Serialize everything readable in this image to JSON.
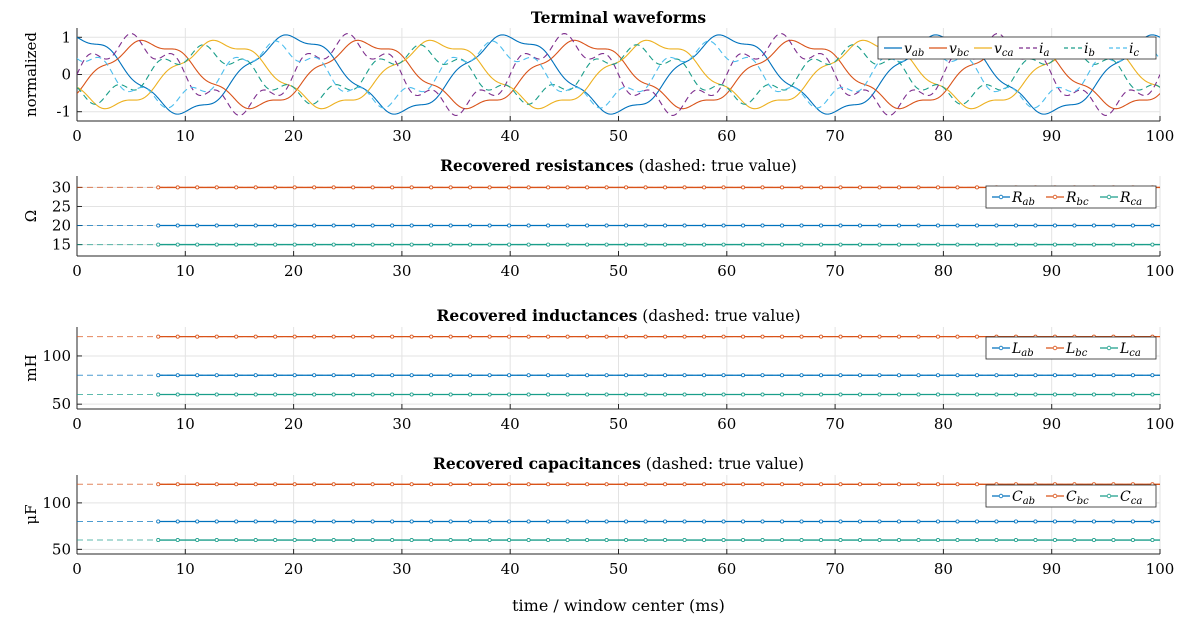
{
  "figure": {
    "xlabel": "time / window center (ms)"
  },
  "chart_data": [
    {
      "type": "line",
      "title": "Terminal waveforms",
      "title_suffix": "",
      "ylabel": "normalized",
      "xlim": [
        0,
        100
      ],
      "ylim": [
        -1.25,
        1.25
      ],
      "xticks": [
        0,
        10,
        20,
        30,
        40,
        50,
        60,
        70,
        80,
        90,
        100
      ],
      "yticks": [
        -1,
        0,
        1
      ],
      "grid": true,
      "legend": {
        "position": "top-right",
        "orientation": "horizontal"
      },
      "series": [
        {
          "name": "v",
          "subscript": "ab",
          "color": "#0072BD",
          "dash": "solid",
          "amplitude": 1.0,
          "phase_deg": 90,
          "harmonic": 0.1
        },
        {
          "name": "v",
          "subscript": "bc",
          "color": "#D95319",
          "dash": "solid",
          "amplitude": 0.85,
          "phase_deg": -30,
          "harmonic": 0.1
        },
        {
          "name": "v",
          "subscript": "ca",
          "color": "#EDB120",
          "dash": "solid",
          "amplitude": 0.85,
          "phase_deg": 210,
          "harmonic": 0.1
        },
        {
          "name": "i",
          "subscript": "a",
          "color": "#7E2F8E",
          "dash": "dashed",
          "amplitude": 0.85,
          "phase_deg": 0,
          "harmonic": 0.25
        },
        {
          "name": "i",
          "subscript": "b",
          "color": "#1A9E8A",
          "dash": "dashed",
          "amplitude": 0.6,
          "phase_deg": -120,
          "harmonic": 0.2
        },
        {
          "name": "i",
          "subscript": "c",
          "color": "#4DBEEE",
          "dash": "dashed",
          "amplitude": 0.7,
          "phase_deg": 120,
          "harmonic": 0.2
        }
      ]
    },
    {
      "type": "line",
      "title": "Recovered resistances",
      "title_suffix": "(dashed: true value)",
      "ylabel": "Ω",
      "xlim": [
        0,
        100
      ],
      "ylim": [
        12,
        33
      ],
      "xticks": [
        0,
        10,
        20,
        30,
        40,
        50,
        60,
        70,
        80,
        90,
        100
      ],
      "yticks": [
        15,
        20,
        25,
        30
      ],
      "grid": true,
      "legend": {
        "position": "top-right",
        "orientation": "horizontal"
      },
      "estimate_start": 7.5,
      "estimate_step": 1.8,
      "series": [
        {
          "name": "R",
          "subscript": "ab",
          "color": "#0072BD",
          "true_value": 20,
          "estimate": 20
        },
        {
          "name": "R",
          "subscript": "bc",
          "color": "#D95319",
          "true_value": 30,
          "estimate": 30
        },
        {
          "name": "R",
          "subscript": "ca",
          "color": "#1A9E8A",
          "true_value": 15,
          "estimate": 15
        }
      ]
    },
    {
      "type": "line",
      "title": "Recovered inductances",
      "title_suffix": "(dashed: true value)",
      "ylabel": "mH",
      "xlim": [
        0,
        100
      ],
      "ylim": [
        45,
        130
      ],
      "xticks": [
        0,
        10,
        20,
        30,
        40,
        50,
        60,
        70,
        80,
        90,
        100
      ],
      "yticks": [
        50,
        100
      ],
      "grid": true,
      "legend": {
        "position": "top-right",
        "orientation": "horizontal"
      },
      "estimate_start": 7.5,
      "estimate_step": 1.8,
      "series": [
        {
          "name": "L",
          "subscript": "ab",
          "color": "#0072BD",
          "true_value": 80,
          "estimate": 80
        },
        {
          "name": "L",
          "subscript": "bc",
          "color": "#D95319",
          "true_value": 120,
          "estimate": 120
        },
        {
          "name": "L",
          "subscript": "ca",
          "color": "#1A9E8A",
          "true_value": 60,
          "estimate": 60
        }
      ]
    },
    {
      "type": "line",
      "title": "Recovered capacitances",
      "title_suffix": "(dashed: true value)",
      "ylabel": "μF",
      "xlim": [
        0,
        100
      ],
      "ylim": [
        45,
        130
      ],
      "xticks": [
        0,
        10,
        20,
        30,
        40,
        50,
        60,
        70,
        80,
        90,
        100
      ],
      "yticks": [
        50,
        100
      ],
      "grid": true,
      "legend": {
        "position": "top-right",
        "orientation": "horizontal"
      },
      "estimate_start": 7.5,
      "estimate_step": 1.8,
      "series": [
        {
          "name": "C",
          "subscript": "ab",
          "color": "#0072BD",
          "true_value": 80,
          "estimate": 80
        },
        {
          "name": "C",
          "subscript": "bc",
          "color": "#D95319",
          "true_value": 120,
          "estimate": 120
        },
        {
          "name": "C",
          "subscript": "ca",
          "color": "#1A9E8A",
          "true_value": 60,
          "estimate": 60
        }
      ]
    }
  ]
}
